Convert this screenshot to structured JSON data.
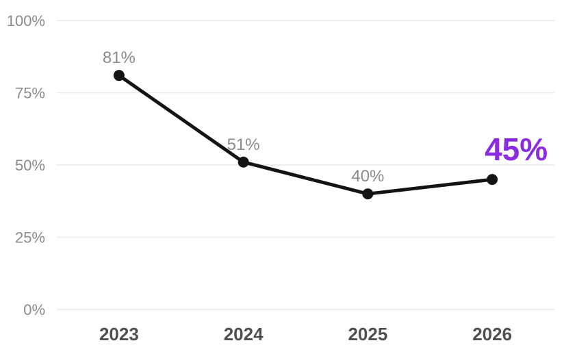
{
  "chart_data": {
    "type": "line",
    "title": "",
    "xlabel": "",
    "ylabel": "",
    "categories": [
      "2023",
      "2024",
      "2025",
      "2026"
    ],
    "values": [
      81,
      51,
      40,
      45
    ],
    "point_labels": [
      "81%",
      "51%",
      "40%",
      "45%"
    ],
    "highlight_index": 3,
    "highlight_label": "45%",
    "y_ticks": [
      {
        "value": 100,
        "label": "100%"
      },
      {
        "value": 75,
        "label": "75%"
      },
      {
        "value": 50,
        "label": "50%"
      },
      {
        "value": 25,
        "label": "25%"
      },
      {
        "value": 0,
        "label": "0%"
      }
    ],
    "ylim": [
      0,
      100
    ],
    "grid": true,
    "legend_position": "none",
    "colors": {
      "line": "#141414",
      "point": "#141414",
      "data_label": "#8a8a8a",
      "highlight_label": "#8B2BE2",
      "y_tick_label": "#8a8a8a",
      "x_tick_label": "#4f4f4f",
      "gridline": "#e9e9e9",
      "background": "#ffffff"
    }
  }
}
